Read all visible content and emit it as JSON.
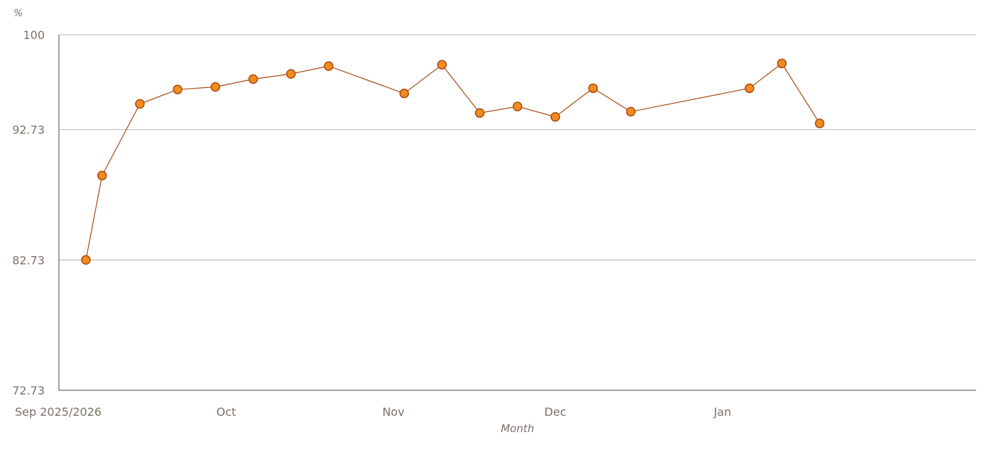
{
  "chart_data": {
    "type": "line",
    "unit_label": "%",
    "xlabel": "Month",
    "ylabel": "",
    "ylim": [
      72.73,
      100
    ],
    "y_ticks": [
      {
        "value": 100,
        "label": "100"
      },
      {
        "value": 92.73,
        "label": "92.73"
      },
      {
        "value": 82.73,
        "label": "82.73"
      },
      {
        "value": 72.73,
        "label": "72.73"
      }
    ],
    "x_ticks": [
      {
        "date": "2025-09-01",
        "label": "Sep 2025/2026"
      },
      {
        "date": "2025-10-01",
        "label": "Oct"
      },
      {
        "date": "2025-11-01",
        "label": "Nov"
      },
      {
        "date": "2025-12-01",
        "label": "Dec"
      },
      {
        "date": "2026-01-01",
        "label": "Jan"
      }
    ],
    "xlim": [
      "2025-08-31",
      "2026-02-17"
    ],
    "grid": "horizontal",
    "series": [
      {
        "color": "#a84a14",
        "marker_fill": "#f28c1e",
        "points": [
          {
            "date": "2025-09-05",
            "value": 82.73
          },
          {
            "date": "2025-09-08",
            "value": 89.2
          },
          {
            "date": "2025-09-15",
            "value": 94.7
          },
          {
            "date": "2025-09-22",
            "value": 95.8
          },
          {
            "date": "2025-09-29",
            "value": 96.0
          },
          {
            "date": "2025-10-06",
            "value": 96.6
          },
          {
            "date": "2025-10-13",
            "value": 97.0
          },
          {
            "date": "2025-10-20",
            "value": 97.6
          },
          {
            "date": "2025-11-03",
            "value": 95.5
          },
          {
            "date": "2025-11-10",
            "value": 97.7
          },
          {
            "date": "2025-11-17",
            "value": 94.0
          },
          {
            "date": "2025-11-24",
            "value": 94.5
          },
          {
            "date": "2025-12-01",
            "value": 93.7
          },
          {
            "date": "2025-12-08",
            "value": 95.9
          },
          {
            "date": "2025-12-15",
            "value": 94.1
          },
          {
            "date": "2026-01-06",
            "value": 95.9
          },
          {
            "date": "2026-01-12",
            "value": 97.8
          },
          {
            "date": "2026-01-19",
            "value": 93.2
          }
        ]
      }
    ]
  }
}
